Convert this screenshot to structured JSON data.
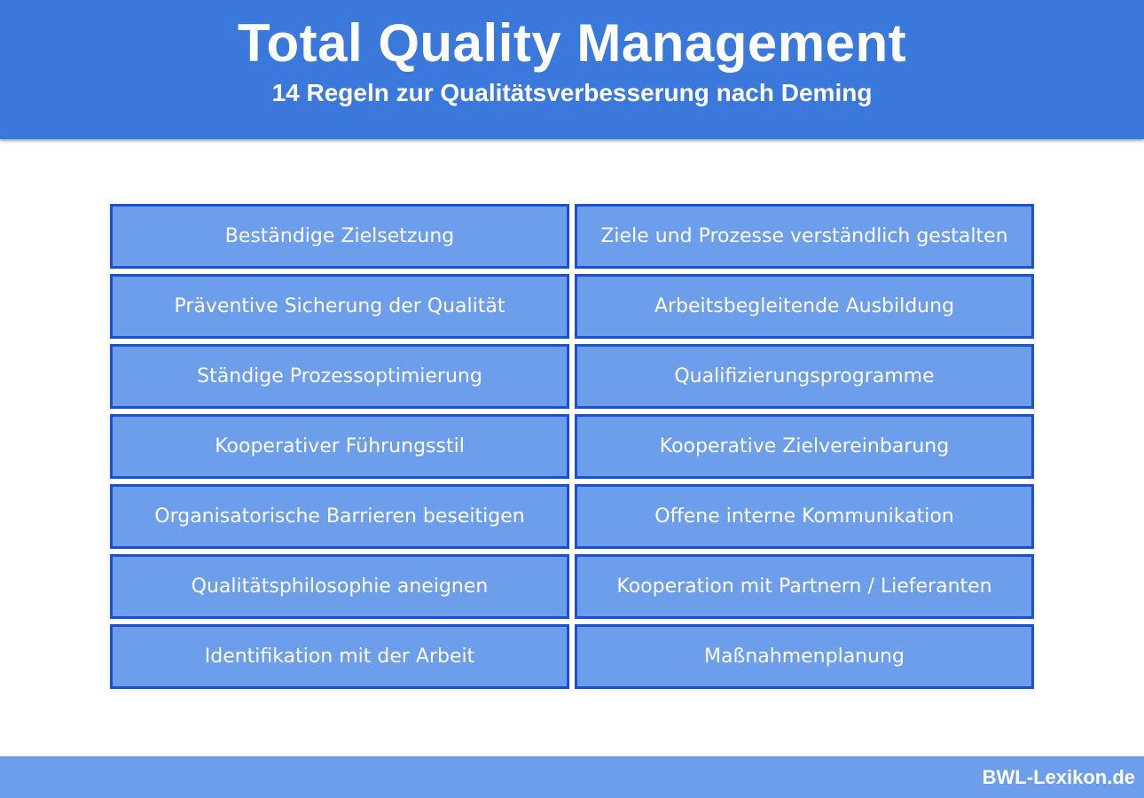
{
  "header": {
    "title": "Total Quality Management",
    "subtitle": "14 Regeln zur Qualitätsverbesserung nach Deming"
  },
  "rules": [
    "Beständige Zielsetzung",
    "Ziele und Prozesse verständlich gestalten",
    "Präventive Sicherung der Qualität",
    "Arbeitsbegleitende Ausbildung",
    "Ständige Prozessoptimierung",
    "Qualifizierungsprogramme",
    "Kooperativer Führungsstil",
    "Kooperative Zielvereinbarung",
    "Organisatorische Barrieren beseitigen",
    "Offene interne Kommunikation",
    "Qualitätsphilosophie aneignen",
    "Kooperation mit Partnern / Lieferanten",
    "Identifikation mit der Arbeit",
    "Maßnahmenplanung"
  ],
  "footer": {
    "brand": "BWL-Lexikon.de"
  },
  "colors": {
    "header_bg": "#3b78db",
    "cell_bg": "#6d9eeb",
    "cell_border": "#1c4fd1",
    "footer_bg": "#6d9eeb",
    "text": "#ffffff"
  }
}
